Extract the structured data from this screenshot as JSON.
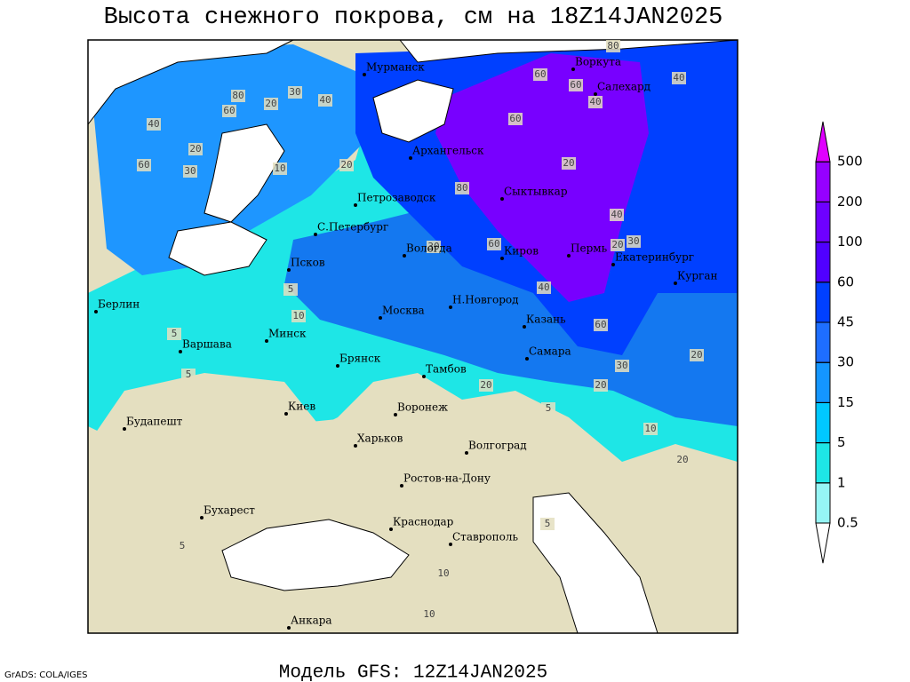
{
  "title": "Высота снежного покрова, см на 18Z14JAN2025",
  "footer": "Модель GFS: 12Z14JAN2025",
  "credit": "GrADS: COLA/IGES",
  "colorbar": {
    "levels": [
      0.5,
      1,
      5,
      15,
      30,
      45,
      60,
      100,
      200,
      500
    ],
    "colors": [
      "#ffffff",
      "#96f5f5",
      "#1ee6e6",
      "#00c8ff",
      "#1496ff",
      "#1e6eff",
      "#0040ff",
      "#5000ff",
      "#6e00ff",
      "#9600ff",
      "#e000ff"
    ]
  },
  "cities": [
    "Мурманск",
    "Воркута",
    "Салехард",
    "Архангельск",
    "Петрозаводск",
    "Сыктывкар",
    "С.Петербург",
    "Вологда",
    "Киров",
    "Пермь",
    "Екатеринбург",
    "Курган",
    "Псков",
    "Н.Новгород",
    "Казань",
    "Москва",
    "Берлин",
    "Минск",
    "Варшава",
    "Самара",
    "Брянск",
    "Тамбов",
    "Киев",
    "Воронеж",
    "Будапешт",
    "Харьков",
    "Волгоград",
    "Ростов-на-Дону",
    "Бухарест",
    "Краснодар",
    "Ставрополь",
    "Анкара"
  ],
  "contour_labels": [
    "60",
    "80",
    "60",
    "30",
    "40",
    "20",
    "40",
    "60",
    "80",
    "60",
    "40",
    "40",
    "20",
    "10",
    "30",
    "60",
    "20",
    "80",
    "30",
    "60",
    "40",
    "30",
    "20",
    "40",
    "60",
    "30",
    "20",
    "5",
    "10",
    "5",
    "5",
    "10",
    "20",
    "5",
    "10",
    "20",
    "20",
    "10",
    "5",
    "20",
    "5"
  ]
}
